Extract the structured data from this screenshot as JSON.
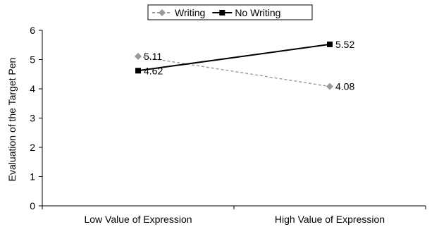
{
  "chart_data": {
    "type": "line",
    "categories": [
      "Low Value of Expression",
      "High Value of Expression"
    ],
    "series": [
      {
        "name": "Writing",
        "values": [
          5.11,
          4.08
        ],
        "value_labels": [
          "5.11",
          "4.08"
        ],
        "color": "#999999",
        "style": "dashed",
        "marker": "diamond"
      },
      {
        "name": "No Writing",
        "values": [
          4.62,
          5.52
        ],
        "value_labels": [
          "4.62",
          "5.52"
        ],
        "color": "#000000",
        "style": "solid",
        "marker": "square"
      }
    ],
    "xlabel": "",
    "ylabel": "Evaluation of the Target Pen",
    "ylim": [
      0,
      6
    ],
    "yticks": [
      "0",
      "1",
      "2",
      "3",
      "4",
      "5",
      "6"
    ],
    "grid": false,
    "legend_position": "top-center"
  }
}
